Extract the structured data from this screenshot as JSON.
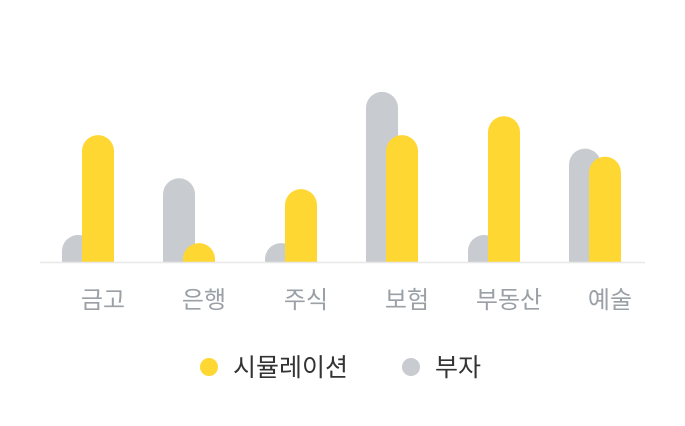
{
  "chart_data": {
    "type": "bar",
    "categories": [
      "금고",
      "은행",
      "주식",
      "보험",
      "부동산",
      "예술"
    ],
    "series": [
      {
        "name": "부자",
        "color": "#c8cbcf",
        "values": [
          10,
          31,
          7,
          63,
          10,
          42
        ]
      },
      {
        "name": "시뮬레이션",
        "color": "#ffd733",
        "values": [
          47,
          7,
          27,
          47,
          54,
          39
        ]
      }
    ],
    "ylim": [
      0,
      70
    ],
    "grid": false,
    "legend_position": "bottom",
    "legend": [
      {
        "label": "시뮬레이션",
        "color": "#ffd733"
      },
      {
        "label": "부자",
        "color": "#c8cbcf"
      }
    ],
    "baseline_color": "#e8e8e8"
  }
}
